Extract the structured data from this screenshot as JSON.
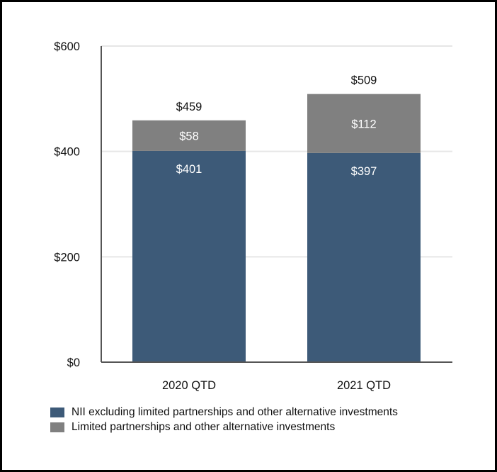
{
  "chart_data": {
    "type": "bar",
    "stacked": true,
    "categories": [
      "2020 QTD",
      "2021 QTD"
    ],
    "series": [
      {
        "name": "NII excluding limited partnerships and other alternative investments",
        "values": [
          401,
          397
        ],
        "labels": [
          "$401",
          "$397"
        ],
        "color": "#3d5a78"
      },
      {
        "name": "Limited partnerships and other alternative investments",
        "values": [
          58,
          112
        ],
        "labels": [
          "$58",
          "$112"
        ],
        "color": "#808080"
      }
    ],
    "totals": [
      459,
      509
    ],
    "total_labels": [
      "$459",
      "$509"
    ],
    "ylim": [
      0,
      600
    ],
    "yticks": [
      0,
      200,
      400,
      600
    ],
    "ytick_labels": [
      "$0",
      "$200",
      "$400",
      "$600"
    ],
    "grid": true,
    "legend": "bottom-left"
  }
}
